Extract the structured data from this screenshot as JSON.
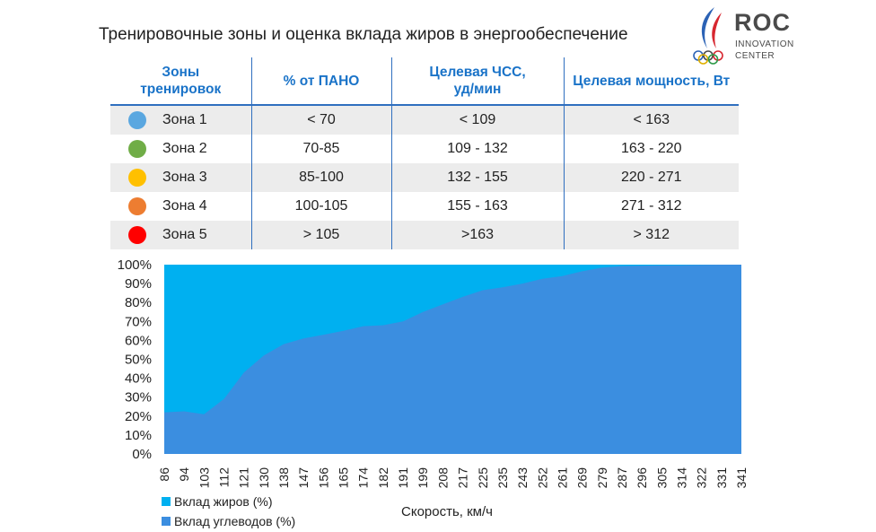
{
  "page": {
    "title": "Тренировочные зоны и оценка вклада жиров в энергообеспечение"
  },
  "logo": {
    "word": "ROC",
    "line1": "INNOVATION",
    "line2": "CENTER",
    "colors": {
      "blue": "#2b62b5",
      "red": "#d7262f",
      "text": "#4a4a4a"
    }
  },
  "table": {
    "headers": {
      "zones": "Зоны тренировок",
      "pano": "% от ПАНО",
      "hr": "Целевая ЧСС, уд/мин",
      "power": "Целевая мощность, Вт"
    },
    "rows": [
      {
        "zone": "Зона 1",
        "color": "#5aa7e0",
        "pano": "< 70",
        "hr": "< 109",
        "power": "< 163"
      },
      {
        "zone": "Зона 2",
        "color": "#70ad47",
        "pano": "70-85",
        "hr": "109 - 132",
        "power": "163 - 220"
      },
      {
        "zone": "Зона 3",
        "color": "#ffc000",
        "pano": "85-100",
        "hr": "132 - 155",
        "power": "220 - 271"
      },
      {
        "zone": "Зона 4",
        "color": "#ed7d31",
        "pano": "100-105",
        "hr": "155 - 163",
        "power": "271 - 312"
      },
      {
        "zone": "Зона 5",
        "color": "#ff0000",
        "pano": ">  105",
        "hr": ">163",
        "power": "> 312"
      }
    ],
    "header_color": "#1a73c8",
    "line_color": "#2f6fbf",
    "stripe_color": "#ececec"
  },
  "chart_data": {
    "type": "area",
    "stacked": true,
    "x": [
      "86",
      "94",
      "103",
      "112",
      "121",
      "130",
      "138",
      "147",
      "156",
      "165",
      "174",
      "182",
      "191",
      "199",
      "208",
      "217",
      "225",
      "235",
      "243",
      "252",
      "261",
      "269",
      "279",
      "287",
      "296",
      "305",
      "314",
      "322",
      "331",
      "341"
    ],
    "series": [
      {
        "name": "Вклад углеводов (%)",
        "color": "#3b8ee0",
        "values": [
          22,
          22.5,
          21,
          29,
          43,
          52,
          58,
          61,
          63,
          65,
          67.5,
          68,
          70,
          75,
          79,
          83,
          86.5,
          88,
          90,
          92.5,
          94,
          96.5,
          98.5,
          99.3,
          99.5,
          99.6,
          99.7,
          99.9,
          100,
          100
        ]
      },
      {
        "name": "Вклад жиров (%)",
        "color": "#00b0f0",
        "values": [
          78,
          77.5,
          79,
          71,
          57,
          48,
          42,
          39,
          37,
          35,
          32.5,
          32,
          30,
          25,
          21,
          17,
          13.5,
          12,
          10,
          7.5,
          6,
          3.5,
          1.5,
          0.7,
          0.5,
          0.4,
          0.3,
          0.1,
          0,
          0
        ]
      }
    ],
    "y_ticks": [
      "0%",
      "10%",
      "20%",
      "30%",
      "40%",
      "50%",
      "60%",
      "70%",
      "80%",
      "90%",
      "100%"
    ],
    "ylim": [
      0,
      100
    ],
    "xlabel": "Скорость, км/ч",
    "ylabel": "",
    "grid": false,
    "legend_position": "bottom-left"
  }
}
